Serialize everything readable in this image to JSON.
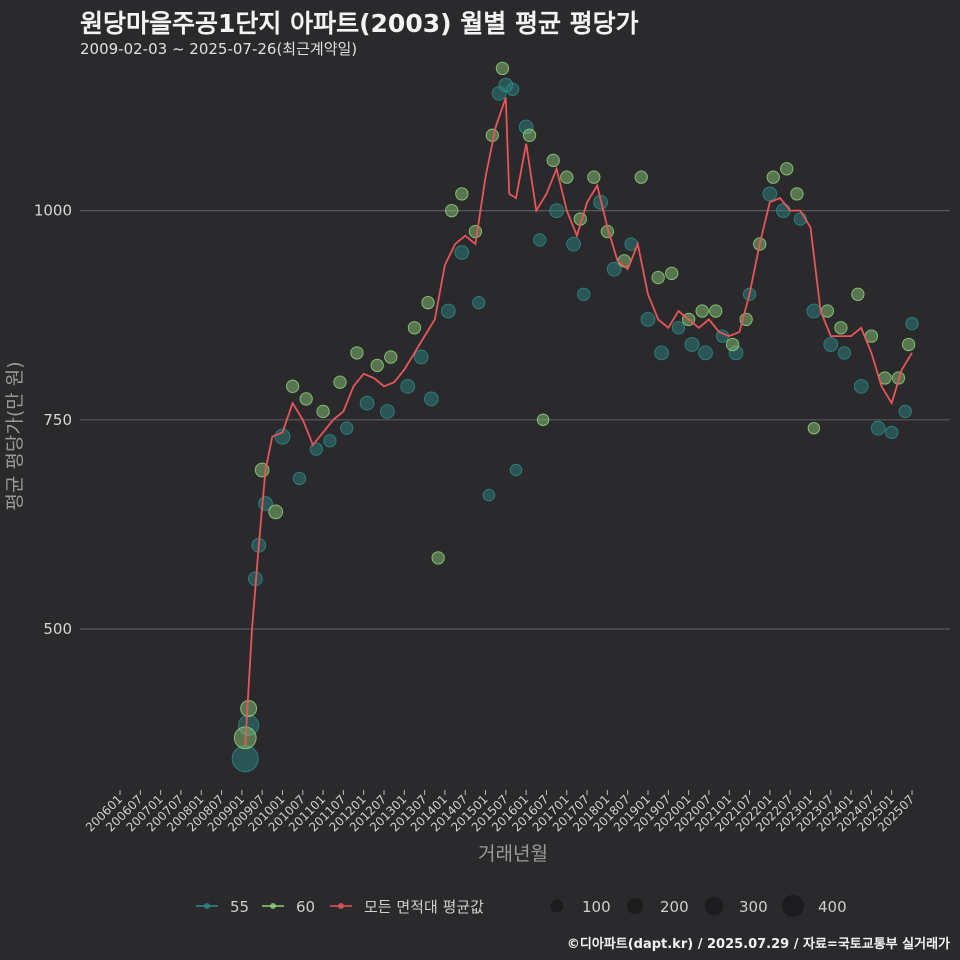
{
  "chart_data": {
    "type": "scatter+line",
    "title": "원당마을주공1단지 아파트(2003) 월별 평균 평당가",
    "subtitle": "2009-02-03 ~ 2025-07-26(최근계약일)",
    "xlabel": "거래년월",
    "ylabel": "평균 평당가(만 원)",
    "ylim": [
      310,
      1180
    ],
    "yticks": [
      500,
      750,
      1000
    ],
    "x_months_range": [
      "2006-01",
      "2025-07"
    ],
    "x_tick_labels": [
      "200601",
      "200607",
      "200701",
      "200707",
      "200801",
      "200807",
      "200901",
      "200907",
      "201001",
      "201007",
      "201101",
      "201107",
      "201201",
      "201207",
      "201301",
      "201307",
      "201401",
      "201407",
      "201501",
      "201507",
      "201601",
      "201607",
      "201701",
      "201707",
      "201801",
      "201807",
      "201901",
      "201907",
      "202001",
      "202007",
      "202101",
      "202107",
      "202201",
      "202207",
      "202301",
      "202307",
      "202401",
      "202407",
      "202501",
      "202507"
    ],
    "series": [
      {
        "name": "모든 면적대 평균값",
        "type": "line",
        "color": "#e8555b",
        "points": [
          [
            "2009-02",
            360
          ],
          [
            "2009-04",
            500
          ],
          [
            "2009-06",
            600
          ],
          [
            "2009-08",
            690
          ],
          [
            "2009-10",
            730
          ],
          [
            "2010-01",
            735
          ],
          [
            "2010-04",
            770
          ],
          [
            "2010-07",
            750
          ],
          [
            "2010-10",
            720
          ],
          [
            "2011-01",
            735
          ],
          [
            "2011-04",
            750
          ],
          [
            "2011-07",
            760
          ],
          [
            "2011-10",
            790
          ],
          [
            "2012-01",
            805
          ],
          [
            "2012-04",
            800
          ],
          [
            "2012-07",
            790
          ],
          [
            "2012-10",
            795
          ],
          [
            "2013-01",
            810
          ],
          [
            "2013-04",
            830
          ],
          [
            "2013-07",
            850
          ],
          [
            "2013-10",
            870
          ],
          [
            "2014-01",
            935
          ],
          [
            "2014-04",
            960
          ],
          [
            "2014-07",
            970
          ],
          [
            "2014-10",
            960
          ],
          [
            "2015-01",
            1040
          ],
          [
            "2015-04",
            1100
          ],
          [
            "2015-07",
            1135
          ],
          [
            "2015-08",
            1020
          ],
          [
            "2015-10",
            1015
          ],
          [
            "2016-01",
            1080
          ],
          [
            "2016-04",
            1000
          ],
          [
            "2016-07",
            1020
          ],
          [
            "2016-10",
            1050
          ],
          [
            "2017-01",
            1000
          ],
          [
            "2017-04",
            970
          ],
          [
            "2017-07",
            1010
          ],
          [
            "2017-10",
            1030
          ],
          [
            "2018-01",
            980
          ],
          [
            "2018-04",
            940
          ],
          [
            "2018-07",
            930
          ],
          [
            "2018-10",
            960
          ],
          [
            "2019-01",
            900
          ],
          [
            "2019-04",
            870
          ],
          [
            "2019-07",
            860
          ],
          [
            "2019-10",
            880
          ],
          [
            "2020-01",
            870
          ],
          [
            "2020-04",
            860
          ],
          [
            "2020-07",
            870
          ],
          [
            "2020-10",
            855
          ],
          [
            "2021-01",
            850
          ],
          [
            "2021-04",
            855
          ],
          [
            "2021-07",
            900
          ],
          [
            "2021-10",
            960
          ],
          [
            "2022-01",
            1010
          ],
          [
            "2022-04",
            1015
          ],
          [
            "2022-07",
            1000
          ],
          [
            "2022-10",
            1000
          ],
          [
            "2023-01",
            980
          ],
          [
            "2023-04",
            880
          ],
          [
            "2023-07",
            850
          ],
          [
            "2023-10",
            850
          ],
          [
            "2024-01",
            850
          ],
          [
            "2024-04",
            860
          ],
          [
            "2024-07",
            830
          ],
          [
            "2024-10",
            790
          ],
          [
            "2025-01",
            770
          ],
          [
            "2025-04",
            810
          ],
          [
            "2025-07",
            830
          ]
        ]
      },
      {
        "name": "55",
        "type": "scatter",
        "color": "#2c8a86",
        "points": [
          [
            "2009-02",
            345,
            400
          ],
          [
            "2009-03",
            385,
            200
          ],
          [
            "2009-05",
            560,
            60
          ],
          [
            "2009-06",
            600,
            60
          ],
          [
            "2009-08",
            650,
            60
          ],
          [
            "2010-01",
            730,
            80
          ],
          [
            "2010-06",
            680,
            40
          ],
          [
            "2010-11",
            715,
            40
          ],
          [
            "2011-03",
            725,
            40
          ],
          [
            "2011-08",
            740,
            40
          ],
          [
            "2012-02",
            770,
            60
          ],
          [
            "2012-08",
            760,
            60
          ],
          [
            "2013-02",
            790,
            60
          ],
          [
            "2013-06",
            825,
            60
          ],
          [
            "2013-09",
            775,
            60
          ],
          [
            "2014-02",
            880,
            60
          ],
          [
            "2014-06",
            950,
            60
          ],
          [
            "2014-11",
            890,
            40
          ],
          [
            "2015-02",
            660,
            30
          ],
          [
            "2015-05",
            1140,
            60
          ],
          [
            "2015-07",
            1150,
            60
          ],
          [
            "2015-09",
            1145,
            40
          ],
          [
            "2015-10",
            690,
            30
          ],
          [
            "2016-01",
            1100,
            60
          ],
          [
            "2016-05",
            965,
            40
          ],
          [
            "2016-10",
            1000,
            60
          ],
          [
            "2017-03",
            960,
            60
          ],
          [
            "2017-06",
            900,
            40
          ],
          [
            "2017-11",
            1010,
            60
          ],
          [
            "2018-03",
            930,
            60
          ],
          [
            "2018-08",
            960,
            40
          ],
          [
            "2019-01",
            870,
            60
          ],
          [
            "2019-05",
            830,
            60
          ],
          [
            "2019-10",
            860,
            40
          ],
          [
            "2020-02",
            840,
            60
          ],
          [
            "2020-06",
            830,
            60
          ],
          [
            "2020-11",
            850,
            40
          ],
          [
            "2021-03",
            830,
            60
          ],
          [
            "2021-07",
            900,
            40
          ],
          [
            "2022-01",
            1020,
            60
          ],
          [
            "2022-05",
            1000,
            60
          ],
          [
            "2022-10",
            990,
            40
          ],
          [
            "2023-02",
            880,
            60
          ],
          [
            "2023-07",
            840,
            60
          ],
          [
            "2023-11",
            830,
            40
          ],
          [
            "2024-04",
            790,
            60
          ],
          [
            "2024-09",
            740,
            60
          ],
          [
            "2025-01",
            735,
            40
          ],
          [
            "2025-05",
            760,
            40
          ],
          [
            "2025-07",
            865,
            40
          ]
        ]
      },
      {
        "name": "60",
        "type": "scatter",
        "color": "#8fd07a",
        "points": [
          [
            "2009-02",
            370,
            250
          ],
          [
            "2009-03",
            405,
            100
          ],
          [
            "2009-07",
            690,
            60
          ],
          [
            "2009-11",
            640,
            60
          ],
          [
            "2010-04",
            790,
            40
          ],
          [
            "2010-08",
            775,
            40
          ],
          [
            "2011-01",
            760,
            40
          ],
          [
            "2011-06",
            795,
            40
          ],
          [
            "2011-11",
            830,
            40
          ],
          [
            "2012-05",
            815,
            40
          ],
          [
            "2012-09",
            825,
            40
          ],
          [
            "2013-04",
            860,
            40
          ],
          [
            "2013-08",
            890,
            40
          ],
          [
            "2013-11",
            585,
            40
          ],
          [
            "2014-03",
            1000,
            40
          ],
          [
            "2014-06",
            1020,
            40
          ],
          [
            "2014-10",
            975,
            40
          ],
          [
            "2015-03",
            1090,
            40
          ],
          [
            "2015-06",
            1170,
            40
          ],
          [
            "2016-02",
            1090,
            40
          ],
          [
            "2016-06",
            750,
            30
          ],
          [
            "2016-09",
            1060,
            40
          ],
          [
            "2017-01",
            1040,
            40
          ],
          [
            "2017-05",
            990,
            40
          ],
          [
            "2017-09",
            1040,
            40
          ],
          [
            "2018-01",
            975,
            40
          ],
          [
            "2018-06",
            940,
            40
          ],
          [
            "2018-11",
            1040,
            40
          ],
          [
            "2019-04",
            920,
            40
          ],
          [
            "2019-08",
            925,
            40
          ],
          [
            "2020-01",
            870,
            40
          ],
          [
            "2020-05",
            880,
            40
          ],
          [
            "2020-09",
            880,
            40
          ],
          [
            "2021-02",
            840,
            40
          ],
          [
            "2021-06",
            870,
            40
          ],
          [
            "2021-10",
            960,
            40
          ],
          [
            "2022-02",
            1040,
            40
          ],
          [
            "2022-06",
            1050,
            40
          ],
          [
            "2022-09",
            1020,
            40
          ],
          [
            "2023-02",
            740,
            30
          ],
          [
            "2023-06",
            880,
            40
          ],
          [
            "2023-10",
            860,
            40
          ],
          [
            "2024-03",
            900,
            40
          ],
          [
            "2024-07",
            850,
            40
          ],
          [
            "2024-11",
            800,
            40
          ],
          [
            "2025-03",
            800,
            40
          ],
          [
            "2025-06",
            840,
            40
          ]
        ]
      }
    ],
    "size_legend": [
      100,
      200,
      300,
      400
    ]
  },
  "legend": {
    "items": [
      {
        "label": "55",
        "color": "#2c8a86"
      },
      {
        "label": "60",
        "color": "#8fd07a"
      },
      {
        "label": "모든 면적대 평균값",
        "color": "#e8555b"
      }
    ],
    "sizes": [
      "100",
      "200",
      "300",
      "400"
    ]
  },
  "credit": "©디아파트(dapt.kr) / 2025.07.29 / 자료=국토교통부 실거래가"
}
